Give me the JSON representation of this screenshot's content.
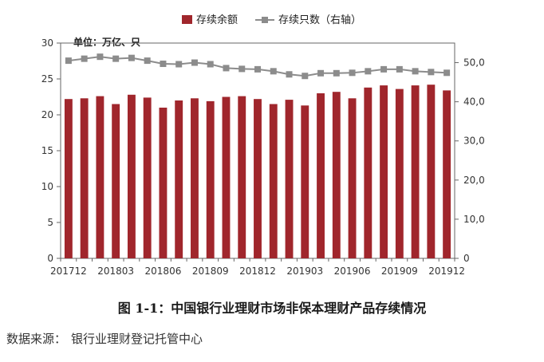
{
  "chart_data": {
    "type": "bar",
    "unit_note": "单位：万亿、只",
    "legend": {
      "bar": "存续余额",
      "line": "存续只数（右轴）",
      "placement": "top-center"
    },
    "categories": [
      "201712",
      "201801",
      "201802",
      "201803",
      "201804",
      "201805",
      "201806",
      "201807",
      "201808",
      "201809",
      "201810",
      "201811",
      "201812",
      "201901",
      "201902",
      "201903",
      "201904",
      "201905",
      "201906",
      "201907",
      "201908",
      "201909",
      "201910",
      "201911",
      "201912"
    ],
    "x_tick_labels": [
      "201712",
      "201803",
      "201806",
      "201809",
      "201812",
      "201903",
      "201906",
      "201909",
      "201912"
    ],
    "series": [
      {
        "name": "存续余额",
        "kind": "bar",
        "axis": "left",
        "color": "#A0262C",
        "values": [
          22.2,
          22.3,
          22.6,
          21.5,
          22.8,
          22.4,
          21.0,
          22.0,
          22.3,
          21.9,
          22.5,
          22.6,
          22.2,
          21.5,
          22.1,
          21.3,
          23.0,
          23.2,
          22.3,
          23.8,
          24.1,
          23.6,
          24.1,
          24.2,
          23.4
        ]
      },
      {
        "name": "存续只数（右轴）",
        "kind": "line",
        "axis": "right",
        "color": "#8C8C8C",
        "values": [
          50.5,
          51.0,
          51.5,
          51.0,
          51.2,
          50.5,
          49.7,
          49.6,
          50.0,
          49.6,
          48.6,
          48.4,
          48.3,
          47.8,
          47.0,
          46.6,
          47.3,
          47.3,
          47.4,
          47.8,
          48.3,
          48.3,
          47.8,
          47.6,
          47.4
        ]
      }
    ],
    "y_left": {
      "min": 0,
      "max": 30,
      "ticks": [
        0,
        5,
        10,
        15,
        20,
        25,
        30
      ],
      "labels": [
        "0",
        "5",
        "10",
        "15",
        "20",
        "25",
        "30"
      ]
    },
    "y_right": {
      "min": 0,
      "max": 55,
      "ticks": [
        0,
        10,
        20,
        30,
        40,
        50
      ],
      "labels": [
        "0",
        "10,0",
        "20,0",
        "30,0",
        "40,0",
        "50,0"
      ]
    },
    "grid": false
  },
  "caption": "图 1-1：中国银行业理财市场非保本理财产品存续情况",
  "source": {
    "label": "数据来源：",
    "text": "银行业理财登记托管中心"
  }
}
